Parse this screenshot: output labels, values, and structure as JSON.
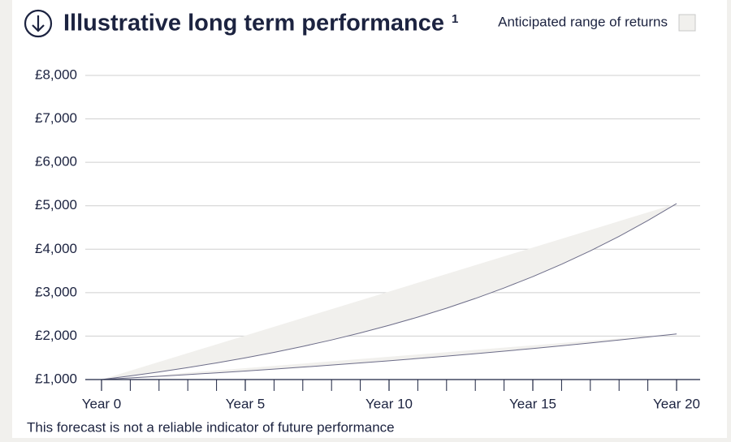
{
  "chart_data": {
    "type": "range_area",
    "title": "Illustrative long term performance",
    "title_note": "1",
    "note": "This forecast is not a reliable indicator of future performance",
    "x": [
      0,
      1,
      2,
      3,
      4,
      5,
      6,
      7,
      8,
      9,
      10,
      11,
      12,
      13,
      14,
      15,
      16,
      17,
      18,
      19,
      20
    ],
    "series": [
      {
        "name": "Anticipated range of returns",
        "color": "#f1f0ed",
        "line_color": "#6c6c88",
        "low": [
          1000,
          1037,
          1074,
          1114,
          1155,
          1197,
          1240,
          1286,
          1333,
          1382,
          1432,
          1485,
          1539,
          1595,
          1654,
          1714,
          1777,
          1842,
          1910,
          1980,
          2050
        ],
        "high": [
          1000,
          1084,
          1176,
          1275,
          1383,
          1499,
          1626,
          1763,
          1911,
          2073,
          2248,
          2437,
          2643,
          2866,
          3108,
          3370,
          3654,
          3962,
          4296,
          4659,
          5050
        ]
      }
    ],
    "xlim": [
      0,
      20
    ],
    "xticks": [
      {
        "value": 0,
        "label": "Year 0"
      },
      {
        "value": 5,
        "label": "Year 5"
      },
      {
        "value": 10,
        "label": "Year 10"
      },
      {
        "value": 15,
        "label": "Year 15"
      },
      {
        "value": 20,
        "label": "Year 20"
      }
    ],
    "xminorticks": [
      1,
      2,
      3,
      4,
      6,
      7,
      8,
      9,
      11,
      12,
      13,
      14,
      16,
      17,
      18,
      19
    ],
    "ylim": [
      1000,
      8000
    ],
    "yticks": [
      {
        "value": 1000,
        "label": "£1,000"
      },
      {
        "value": 2000,
        "label": "£2,000"
      },
      {
        "value": 3000,
        "label": "£3,000"
      },
      {
        "value": 4000,
        "label": "£4,000"
      },
      {
        "value": 5000,
        "label": "£5,000"
      },
      {
        "value": 6000,
        "label": "£6,000"
      },
      {
        "value": 7000,
        "label": "£7,000"
      },
      {
        "value": 8000,
        "label": "£8,000"
      }
    ],
    "grid": true
  }
}
